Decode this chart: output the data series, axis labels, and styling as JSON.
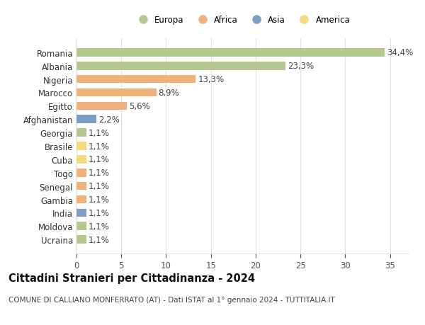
{
  "title": "Cittadini Stranieri per Cittadinanza - 2024",
  "subtitle": "COMUNE DI CALLIANO MONFERRATO (AT) - Dati ISTAT al 1° gennaio 2024 - TUTTITALIA.IT",
  "countries": [
    "Romania",
    "Albania",
    "Nigeria",
    "Marocco",
    "Egitto",
    "Afghanistan",
    "Georgia",
    "Brasile",
    "Cuba",
    "Togo",
    "Senegal",
    "Gambia",
    "India",
    "Moldova",
    "Ucraina"
  ],
  "values": [
    34.4,
    23.3,
    13.3,
    8.9,
    5.6,
    2.2,
    1.1,
    1.1,
    1.1,
    1.1,
    1.1,
    1.1,
    1.1,
    1.1,
    1.1
  ],
  "labels": [
    "34,4%",
    "23,3%",
    "13,3%",
    "8,9%",
    "5,6%",
    "2,2%",
    "1,1%",
    "1,1%",
    "1,1%",
    "1,1%",
    "1,1%",
    "1,1%",
    "1,1%",
    "1,1%",
    "1,1%"
  ],
  "continents": [
    "Europa",
    "Europa",
    "Africa",
    "Africa",
    "Africa",
    "Asia",
    "Europa",
    "America",
    "America",
    "Africa",
    "Africa",
    "Africa",
    "Asia",
    "Europa",
    "Europa"
  ],
  "continent_colors": {
    "Europa": "#b5c98e",
    "Africa": "#f0b27a",
    "Asia": "#7b9fc7",
    "America": "#f5d97e"
  },
  "legend_order": [
    "Europa",
    "Africa",
    "Asia",
    "America"
  ],
  "legend_colors": [
    "#b5c98e",
    "#f0b27a",
    "#7b9fc7",
    "#f5d97e"
  ],
  "xlim": [
    0,
    37
  ],
  "xticks": [
    0,
    5,
    10,
    15,
    20,
    25,
    30,
    35
  ],
  "background_color": "#ffffff",
  "grid_color": "#e0e0e0",
  "bar_height": 0.62,
  "label_fontsize": 8.5,
  "tick_fontsize": 8.5,
  "title_fontsize": 10.5,
  "subtitle_fontsize": 7.5
}
